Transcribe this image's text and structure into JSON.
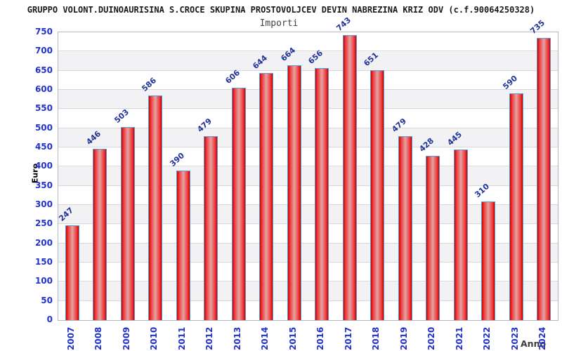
{
  "header": {
    "title": "GRUPPO VOLONT.DUINOAURISINA S.CROCE SKUPINA PROSTOVOLJCEV DEVIN NABREZINA KRIZ ODV (c.f.90064250328)",
    "subtitle": "Importi"
  },
  "chart_data": {
    "type": "bar",
    "title": "GRUPPO VOLONT.DUINOAURISINA S.CROCE SKUPINA PROSTOVOLJCEV DEVIN NABREZINA KRIZ ODV (c.f.90064250328)",
    "subtitle": "Importi",
    "categories": [
      "2007",
      "2008",
      "2009",
      "2010",
      "2011",
      "2012",
      "2013",
      "2014",
      "2015",
      "2016",
      "2017",
      "2018",
      "2019",
      "2020",
      "2021",
      "2022",
      "2023",
      "2024"
    ],
    "values": [
      247,
      446,
      503,
      586,
      390,
      479,
      606,
      644,
      664,
      656,
      743,
      651,
      479,
      428,
      445,
      310,
      590,
      735
    ],
    "xlabel": "Anno",
    "ylabel": "Euro",
    "ylim": [
      0,
      750
    ],
    "ytick_step": 50,
    "y_ticks": [
      750,
      700,
      650,
      600,
      550,
      500,
      450,
      400,
      350,
      300,
      250,
      200,
      150,
      100,
      50,
      0
    ],
    "grid": true,
    "legend": "none",
    "bar_value_labels": true,
    "value_label_rotation_deg": -42,
    "x_tick_rotation_deg": 90
  },
  "colors": {
    "title": "#1a1a1a",
    "subtitle": "#444444",
    "axis_tick": "#2233cc",
    "value_label": "#223399",
    "axis_title": "#000000",
    "anno": "#3c3c3c",
    "bar_edge": "#c40000",
    "bar_bright": "#f23030",
    "bar_mid": "#e2a4a4",
    "bar_border": "#5b9bd5",
    "grid_line": "#d8d8d8",
    "band_fill": "#f2f2f5",
    "plot_border": "#b6b6c2"
  }
}
